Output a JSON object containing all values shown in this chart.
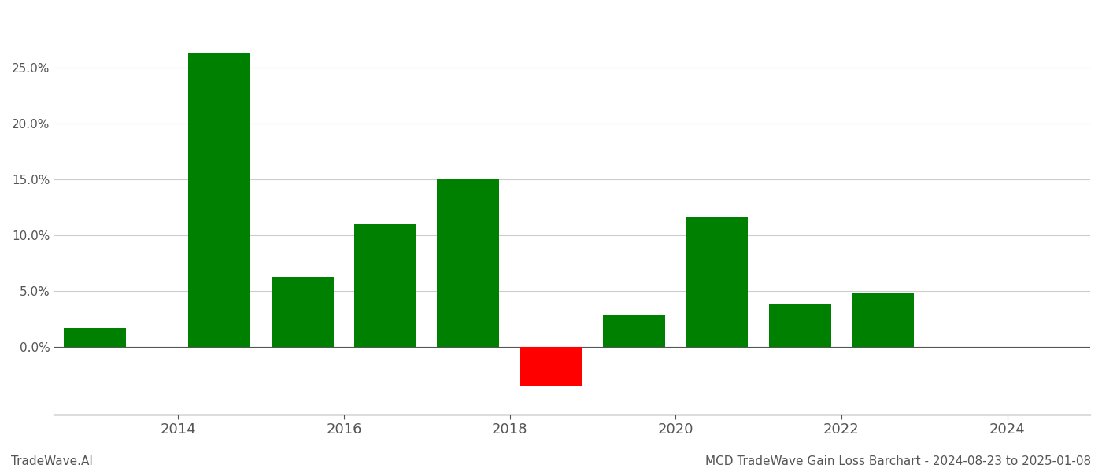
{
  "bar_positions": [
    2013,
    2014.5,
    2015.5,
    2016.5,
    2017.5,
    2018.5,
    2019.5,
    2020.5,
    2021.5,
    2022.5
  ],
  "values": [
    1.7,
    26.3,
    6.3,
    11.0,
    15.0,
    -3.5,
    2.9,
    11.6,
    3.9,
    4.9
  ],
  "colors": [
    "#008000",
    "#008000",
    "#008000",
    "#008000",
    "#008000",
    "#ff0000",
    "#008000",
    "#008000",
    "#008000",
    "#008000"
  ],
  "xticks": [
    2014,
    2016,
    2018,
    2020,
    2022,
    2024
  ],
  "xlim": [
    2012.5,
    2025.0
  ],
  "ylim": [
    -6,
    30
  ],
  "yticks": [
    0.0,
    5.0,
    10.0,
    15.0,
    20.0,
    25.0
  ],
  "footer_left": "TradeWave.AI",
  "footer_right": "MCD TradeWave Gain Loss Barchart - 2024-08-23 to 2025-01-08",
  "background_color": "#ffffff",
  "grid_color": "#cccccc",
  "bar_width": 0.75
}
